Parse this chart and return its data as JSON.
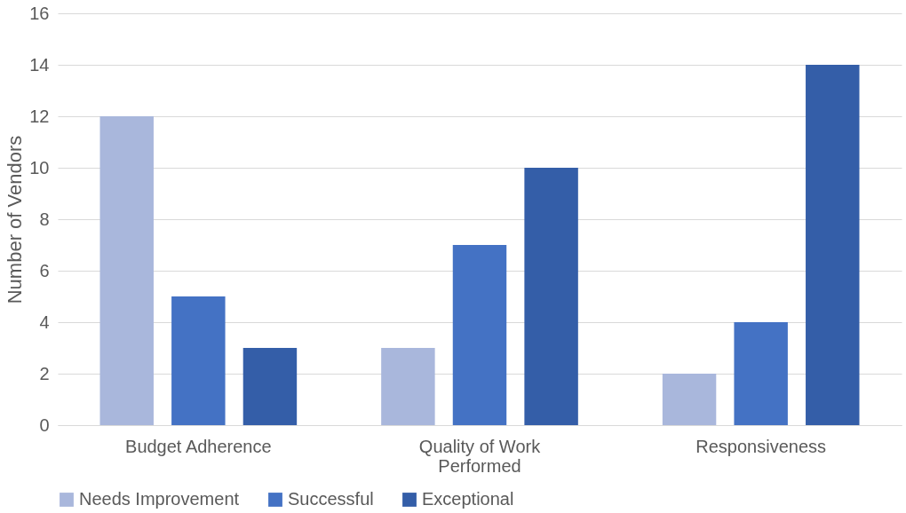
{
  "chart_data": {
    "type": "bar",
    "ylabel": "Number of Vendors",
    "categories": [
      "Budget Adherence",
      "Quality of Work Performed",
      "Responsiveness"
    ],
    "series": [
      {
        "name": "Needs Improvement",
        "color": "#a9b7dc",
        "values": [
          12,
          3,
          2
        ]
      },
      {
        "name": "Successful",
        "color": "#4472c4",
        "values": [
          5,
          7,
          4
        ]
      },
      {
        "name": "Exceptional",
        "color": "#345ea8",
        "values": [
          3,
          10,
          14
        ]
      }
    ],
    "ylim": [
      0,
      16
    ],
    "yticks": [
      0,
      2,
      4,
      6,
      8,
      10,
      12,
      14,
      16
    ],
    "grid": "y",
    "legend": "bottom"
  }
}
